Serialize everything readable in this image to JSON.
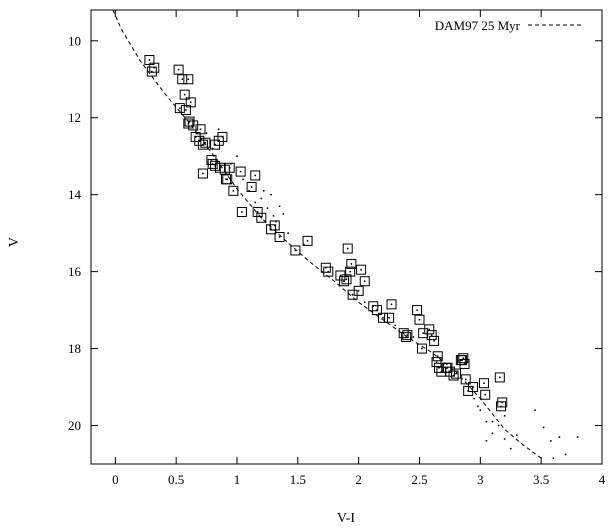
{
  "chart_data": {
    "type": "scatter",
    "title": "",
    "xlabel": "V-I",
    "ylabel": "V",
    "xlim": [
      -0.2,
      4.0
    ],
    "ylim": [
      21.0,
      9.2
    ],
    "y_inverted": true,
    "grid": false,
    "legend_position": "top-right",
    "x_ticks": [
      "0",
      "0.5",
      "1",
      "1.5",
      "2",
      "2.5",
      "3",
      "3.5",
      "4"
    ],
    "y_ticks": [
      "10",
      "12",
      "14",
      "16",
      "18",
      "20"
    ],
    "x_tick_values": [
      0,
      0.5,
      1,
      1.5,
      2,
      2.5,
      3,
      3.5,
      4
    ],
    "y_tick_values": [
      10,
      12,
      14,
      16,
      18,
      20
    ],
    "isochrone": {
      "name": "DAM97 25 Myr",
      "style": "dashed",
      "x": [
        -0.02,
        0.05,
        0.2,
        0.4,
        0.6,
        0.8,
        1.0,
        1.2,
        1.4,
        1.6,
        1.8,
        2.0,
        2.2,
        2.4,
        2.6,
        2.8,
        3.0,
        3.2,
        3.35,
        3.5
      ],
      "y": [
        9.1,
        9.7,
        10.5,
        11.35,
        12.1,
        12.95,
        13.85,
        14.6,
        15.2,
        15.75,
        16.25,
        16.8,
        17.25,
        17.7,
        18.1,
        18.6,
        19.3,
        20.1,
        20.5,
        20.85
      ]
    },
    "members": {
      "marker": "open-square-with-dot",
      "x": [
        0.28,
        0.3,
        0.32,
        0.52,
        0.55,
        0.57,
        0.6,
        0.62,
        0.58,
        0.64,
        0.53,
        0.6,
        0.61,
        0.66,
        0.69,
        0.7,
        0.72,
        0.74,
        0.72,
        0.82,
        0.85,
        0.88,
        0.79,
        0.8,
        0.82,
        0.86,
        0.91,
        0.94,
        0.9,
        0.92,
        0.97,
        1.03,
        1.15,
        1.12,
        1.17,
        1.2,
        1.04,
        1.28,
        1.31,
        1.35,
        1.48,
        1.58,
        1.73,
        1.75,
        1.85,
        1.88,
        1.91,
        1.94,
        1.93,
        2.02,
        2.05,
        1.9,
        1.95,
        2.0,
        2.12,
        2.15,
        2.2,
        2.25,
        2.27,
        2.37,
        2.4,
        2.39,
        2.48,
        2.5,
        2.53,
        2.58,
        2.6,
        2.62,
        2.65,
        2.52,
        2.64,
        2.66,
        2.68,
        2.72,
        2.75,
        2.78,
        2.8,
        2.84,
        2.86,
        2.85,
        2.87,
        2.88,
        2.9,
        2.94,
        3.04,
        3.03,
        3.17,
        3.18,
        3.16,
        2.73
      ],
      "y": [
        10.5,
        10.8,
        10.7,
        10.75,
        11.0,
        11.4,
        11.0,
        11.6,
        11.8,
        12.2,
        11.75,
        12.15,
        12.1,
        12.5,
        12.6,
        12.3,
        12.7,
        12.65,
        13.45,
        12.7,
        12.6,
        12.5,
        13.1,
        13.2,
        13.25,
        13.3,
        13.6,
        13.3,
        13.35,
        13.6,
        13.9,
        13.4,
        13.5,
        13.8,
        14.45,
        14.6,
        14.45,
        14.9,
        14.8,
        15.1,
        15.45,
        15.2,
        15.9,
        16.0,
        16.1,
        16.25,
        15.4,
        15.8,
        16.0,
        15.95,
        16.25,
        16.2,
        16.6,
        16.5,
        16.9,
        17.0,
        17.2,
        17.2,
        16.85,
        17.6,
        17.65,
        17.7,
        17.0,
        17.25,
        17.6,
        17.5,
        17.65,
        17.8,
        18.2,
        18.0,
        18.35,
        18.5,
        18.6,
        18.5,
        18.6,
        18.7,
        18.65,
        18.3,
        18.25,
        18.3,
        18.4,
        18.8,
        19.1,
        19.0,
        19.2,
        18.9,
        19.5,
        19.4,
        18.75,
        18.5
      ]
    },
    "field_stars": {
      "marker": "dot",
      "x": [
        0.75,
        0.8,
        0.85,
        1.0,
        1.1,
        1.15,
        1.2,
        1.25,
        1.3,
        1.32,
        1.35,
        1.38,
        1.22,
        1.28,
        0.95,
        1.05,
        1.42,
        1.55,
        2.05,
        2.3,
        2.45,
        2.7,
        2.95,
        3.0,
        3.05,
        3.1,
        3.15,
        3.2,
        3.05,
        2.98,
        3.45,
        3.52,
        3.58,
        3.65,
        3.7,
        3.8,
        3.6,
        3.25,
        3.3,
        3.2,
        2.9,
        3.1
      ],
      "y": [
        12.4,
        12.8,
        12.3,
        13.0,
        13.9,
        14.2,
        14.1,
        14.35,
        14.55,
        14.7,
        14.3,
        14.5,
        13.9,
        14.0,
        13.2,
        13.6,
        15.0,
        15.3,
        16.8,
        17.4,
        17.7,
        18.4,
        19.3,
        19.6,
        19.9,
        20.2,
        20.0,
        20.35,
        20.4,
        19.5,
        19.6,
        20.05,
        20.4,
        20.3,
        20.75,
        20.3,
        20.85,
        20.6,
        20.25,
        19.75,
        19.1,
        19.9
      ]
    }
  }
}
